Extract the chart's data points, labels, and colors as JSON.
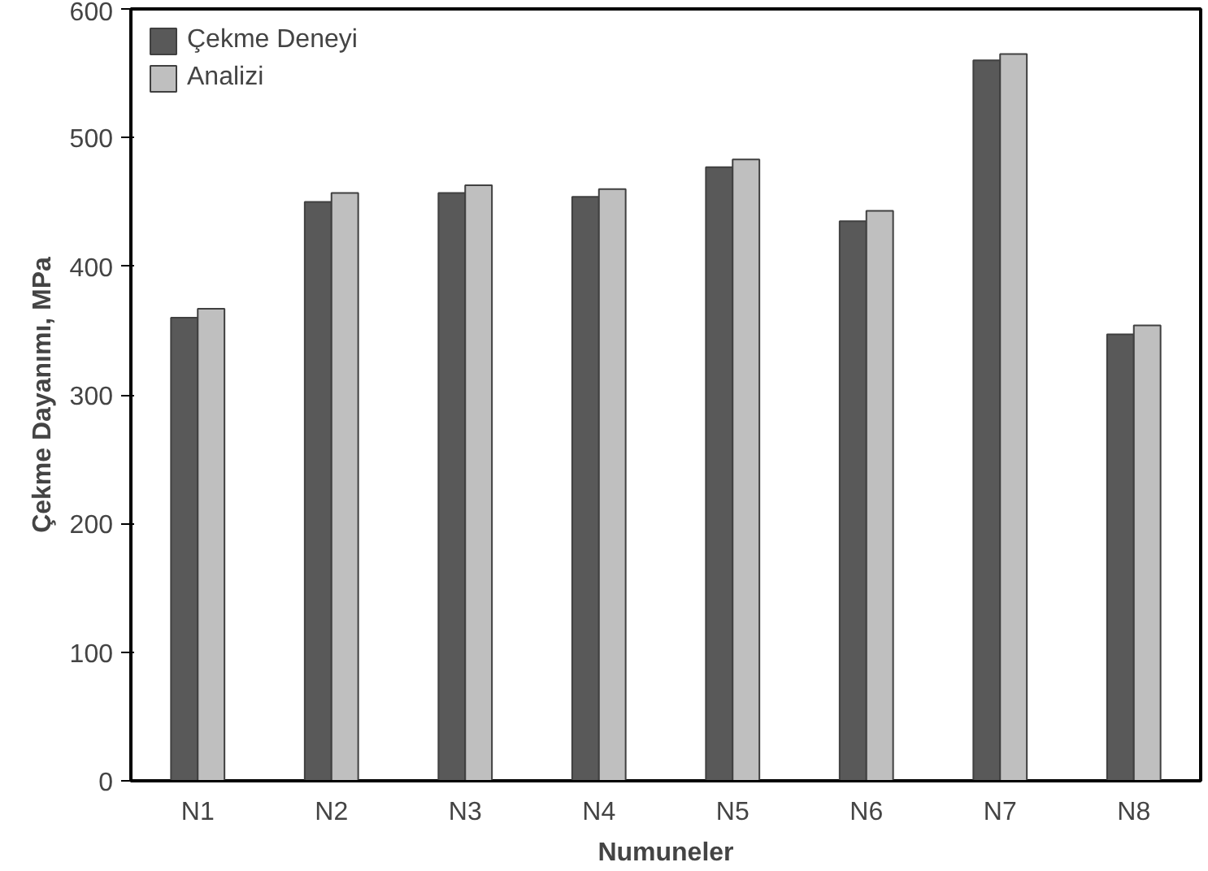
{
  "chart_data": {
    "type": "bar",
    "xlabel": "Numuneler",
    "ylabel": "Çekme Dayanımı, MPa",
    "categories": [
      "N1",
      "N2",
      "N3",
      "N4",
      "N5",
      "N6",
      "N7",
      "N8"
    ],
    "series": [
      {
        "name": "Çekme Deneyi",
        "color": "#595959",
        "values": [
          360,
          450,
          457,
          454,
          477,
          435,
          560,
          347
        ]
      },
      {
        "name": "Analizi",
        "color": "#bfbfbf",
        "values": [
          367,
          457,
          463,
          460,
          483,
          443,
          565,
          354
        ]
      }
    ],
    "ylim": [
      0,
      600
    ],
    "yticks": [
      0,
      100,
      200,
      300,
      400,
      500,
      600
    ],
    "grid": false,
    "legend": "top left"
  }
}
